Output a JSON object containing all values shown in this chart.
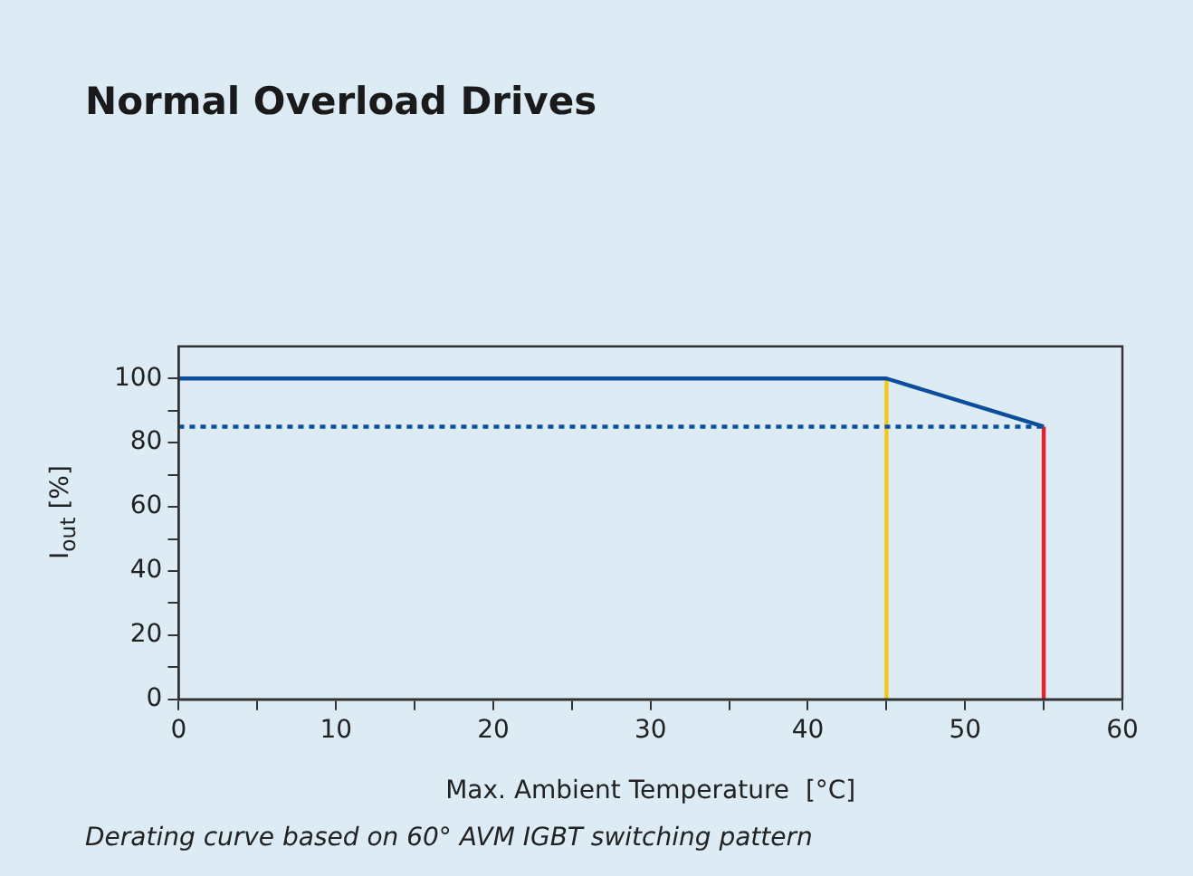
{
  "chart_data": {
    "type": "line",
    "title": "Normal Overload Drives",
    "xlabel": "Max. Ambient Temperature  [°C]",
    "ylabel": "I$_{out}$  [%]",
    "annotations": [
      "Derating curve based on 60° AVM IGBT switching pattern"
    ],
    "series": [
      {
        "x": [
          0,
          45,
          55
        ],
        "values": [
          100,
          100,
          85
        ],
        "color": "#0b4f9c",
        "line_style": "solid"
      },
      {
        "x": [
          0,
          55
        ],
        "values": [
          85,
          85
        ],
        "color": "#0b4f9c",
        "line_style": "dotted"
      },
      {
        "x": [
          45,
          45
        ],
        "values": [
          0,
          100
        ],
        "color": "#f5c518",
        "line_style": "solid"
      },
      {
        "x": [
          55,
          55
        ],
        "values": [
          0,
          85
        ],
        "color": "#e8202a",
        "line_style": "solid"
      }
    ],
    "xlim": [
      0,
      60
    ],
    "xticks": [
      0,
      {
        "value": 5,
        "label": null
      },
      10,
      {
        "value": 15,
        "label": null
      },
      20,
      {
        "value": 25,
        "label": null
      },
      30,
      {
        "value": 35,
        "label": null
      },
      40,
      {
        "value": 45,
        "label": null
      },
      50,
      {
        "value": 55,
        "label": null
      },
      60
    ],
    "ylim": [
      0,
      110
    ],
    "yticks": [
      0,
      {
        "value": 10,
        "label": null
      },
      20,
      {
        "value": 30,
        "label": null
      },
      40,
      {
        "value": 50,
        "label": null
      },
      60,
      {
        "value": 70,
        "label": null
      },
      80,
      {
        "value": 90,
        "label": null
      },
      100
    ],
    "grid": false,
    "legend": false,
    "marker": "none"
  }
}
